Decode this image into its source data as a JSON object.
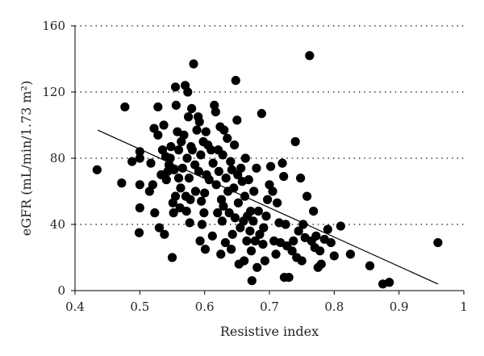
{
  "chart_data": {
    "type": "scatter",
    "title": "",
    "xlabel": "Resistive index",
    "ylabel": "eGFR (mL/min/1.73 m²)",
    "xlim": [
      0.4,
      1.0
    ],
    "ylim": [
      0,
      160
    ],
    "x_ticks": [
      "0.4",
      "0.5",
      "0.6",
      "0.7",
      "0.8",
      "0.9",
      "1"
    ],
    "y_ticks": [
      "0",
      "40",
      "80",
      "120",
      "160"
    ],
    "grid": "horizontal dotted",
    "legend": "none",
    "trendline": {
      "x": [
        0.435,
        0.96
      ],
      "y": [
        97,
        4
      ]
    },
    "points": [
      [
        0.434,
        73
      ],
      [
        0.472,
        65
      ],
      [
        0.477,
        111
      ],
      [
        0.488,
        78
      ],
      [
        0.499,
        35
      ],
      [
        0.5,
        50
      ],
      [
        0.5,
        64
      ],
      [
        0.5,
        80
      ],
      [
        0.5,
        84
      ],
      [
        0.515,
        60
      ],
      [
        0.517,
        77
      ],
      [
        0.52,
        64
      ],
      [
        0.522,
        98
      ],
      [
        0.523,
        47
      ],
      [
        0.528,
        111
      ],
      [
        0.528,
        94
      ],
      [
        0.53,
        38
      ],
      [
        0.533,
        70
      ],
      [
        0.535,
        85
      ],
      [
        0.537,
        100
      ],
      [
        0.538,
        34
      ],
      [
        0.54,
        81
      ],
      [
        0.541,
        67
      ],
      [
        0.543,
        72
      ],
      [
        0.545,
        76
      ],
      [
        0.547,
        80
      ],
      [
        0.548,
        87
      ],
      [
        0.55,
        20
      ],
      [
        0.551,
        53
      ],
      [
        0.552,
        47
      ],
      [
        0.553,
        73
      ],
      [
        0.555,
        57
      ],
      [
        0.555,
        123
      ],
      [
        0.556,
        112
      ],
      [
        0.558,
        96
      ],
      [
        0.56,
        85
      ],
      [
        0.56,
        68
      ],
      [
        0.562,
        50
      ],
      [
        0.563,
        62
      ],
      [
        0.564,
        90
      ],
      [
        0.566,
        74
      ],
      [
        0.568,
        94
      ],
      [
        0.57,
        124
      ],
      [
        0.571,
        57
      ],
      [
        0.572,
        48
      ],
      [
        0.573,
        80
      ],
      [
        0.574,
        120
      ],
      [
        0.575,
        105
      ],
      [
        0.576,
        68
      ],
      [
        0.577,
        41
      ],
      [
        0.578,
        55
      ],
      [
        0.579,
        87
      ],
      [
        0.58,
        110
      ],
      [
        0.581,
        85
      ],
      [
        0.583,
        137
      ],
      [
        0.585,
        76
      ],
      [
        0.586,
        60
      ],
      [
        0.588,
        97
      ],
      [
        0.59,
        105
      ],
      [
        0.591,
        72
      ],
      [
        0.592,
        102
      ],
      [
        0.593,
        30
      ],
      [
        0.594,
        82
      ],
      [
        0.595,
        54
      ],
      [
        0.596,
        40
      ],
      [
        0.598,
        90
      ],
      [
        0.599,
        47
      ],
      [
        0.6,
        59
      ],
      [
        0.601,
        25
      ],
      [
        0.602,
        96
      ],
      [
        0.603,
        70
      ],
      [
        0.605,
        88
      ],
      [
        0.607,
        67
      ],
      [
        0.61,
        85
      ],
      [
        0.612,
        33
      ],
      [
        0.613,
        77
      ],
      [
        0.615,
        112
      ],
      [
        0.617,
        108
      ],
      [
        0.618,
        64
      ],
      [
        0.62,
        47
      ],
      [
        0.621,
        85
      ],
      [
        0.622,
        72
      ],
      [
        0.624,
        99
      ],
      [
        0.625,
        22
      ],
      [
        0.626,
        55
      ],
      [
        0.627,
        42
      ],
      [
        0.628,
        82
      ],
      [
        0.629,
        51
      ],
      [
        0.63,
        97
      ],
      [
        0.632,
        29
      ],
      [
        0.633,
        68
      ],
      [
        0.635,
        92
      ],
      [
        0.636,
        60
      ],
      [
        0.638,
        47
      ],
      [
        0.64,
        78
      ],
      [
        0.641,
        25
      ],
      [
        0.642,
        73
      ],
      [
        0.643,
        34
      ],
      [
        0.645,
        62
      ],
      [
        0.646,
        88
      ],
      [
        0.647,
        44
      ],
      [
        0.648,
        127
      ],
      [
        0.65,
        103
      ],
      [
        0.651,
        70
      ],
      [
        0.652,
        53
      ],
      [
        0.653,
        16
      ],
      [
        0.655,
        38
      ],
      [
        0.656,
        74
      ],
      [
        0.658,
        66
      ],
      [
        0.66,
        42
      ],
      [
        0.661,
        18
      ],
      [
        0.662,
        57
      ],
      [
        0.663,
        80
      ],
      [
        0.665,
        30
      ],
      [
        0.666,
        45
      ],
      [
        0.668,
        67
      ],
      [
        0.67,
        36
      ],
      [
        0.671,
        48
      ],
      [
        0.672,
        24
      ],
      [
        0.673,
        6
      ],
      [
        0.675,
        42
      ],
      [
        0.676,
        60
      ],
      [
        0.678,
        30
      ],
      [
        0.68,
        74
      ],
      [
        0.681,
        14
      ],
      [
        0.683,
        48
      ],
      [
        0.685,
        34
      ],
      [
        0.688,
        107
      ],
      [
        0.69,
        28
      ],
      [
        0.691,
        38
      ],
      [
        0.693,
        18
      ],
      [
        0.695,
        45
      ],
      [
        0.697,
        55
      ],
      [
        0.7,
        64
      ],
      [
        0.702,
        75
      ],
      [
        0.705,
        60
      ],
      [
        0.707,
        30
      ],
      [
        0.71,
        22
      ],
      [
        0.712,
        53
      ],
      [
        0.715,
        41
      ],
      [
        0.717,
        29
      ],
      [
        0.72,
        77
      ],
      [
        0.722,
        69
      ],
      [
        0.723,
        8
      ],
      [
        0.725,
        40
      ],
      [
        0.727,
        27
      ],
      [
        0.73,
        8
      ],
      [
        0.735,
        24
      ],
      [
        0.737,
        30
      ],
      [
        0.74,
        90
      ],
      [
        0.742,
        20
      ],
      [
        0.745,
        36
      ],
      [
        0.748,
        68
      ],
      [
        0.75,
        18
      ],
      [
        0.752,
        40
      ],
      [
        0.755,
        32
      ],
      [
        0.758,
        57
      ],
      [
        0.762,
        142
      ],
      [
        0.765,
        30
      ],
      [
        0.768,
        48
      ],
      [
        0.77,
        26
      ],
      [
        0.772,
        33
      ],
      [
        0.775,
        14
      ],
      [
        0.778,
        24
      ],
      [
        0.78,
        16
      ],
      [
        0.785,
        31
      ],
      [
        0.79,
        37
      ],
      [
        0.795,
        29
      ],
      [
        0.8,
        21
      ],
      [
        0.81,
        39
      ],
      [
        0.825,
        22
      ],
      [
        0.855,
        15
      ],
      [
        0.875,
        4
      ],
      [
        0.885,
        5
      ],
      [
        0.96,
        29
      ]
    ]
  }
}
